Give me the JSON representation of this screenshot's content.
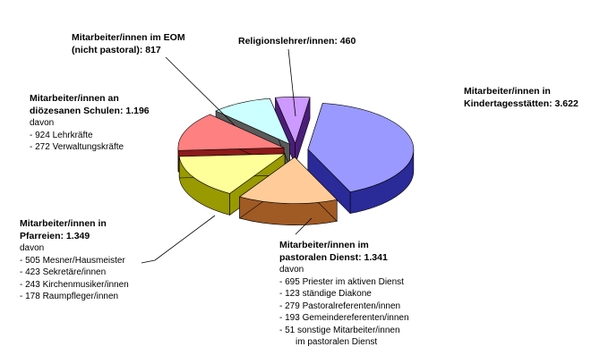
{
  "chart_data": {
    "type": "pie",
    "style": "3d-exploded",
    "total_note": "",
    "slices": [
      {
        "key": "kita",
        "name_lines": [
          "Mitarbeiter/innen in",
          "Kindertagesstätten: 3.622"
        ],
        "value": 3622,
        "top_color": "#9999ff",
        "side_color": "#2a2a99",
        "details": []
      },
      {
        "key": "pastoral",
        "name_lines": [
          "Mitarbeiter/innen im",
          "pastoralen Dienst: 1.341"
        ],
        "value": 1341,
        "top_color": "#ffcc99",
        "side_color": "#a05a24",
        "details": [
          "davon",
          "- 695 Priester im aktiven Dienst",
          "- 123 ständige Diakone",
          "- 279 Pastoralreferenten/innen",
          "- 193 Gemeindereferenten/innen",
          " - 51 sonstige Mitarbeiter/innen",
          "im pastoralen Dienst"
        ]
      },
      {
        "key": "pfarreien",
        "name_lines": [
          "Mitarbeiter/innen in",
          "Pfarreien: 1.349"
        ],
        "value": 1349,
        "top_color": "#ffff99",
        "side_color": "#999900",
        "details": [
          "davon",
          "- 505 Mesner/Hausmeister",
          "- 423 Sekretäre/innen",
          "- 243 Kirchenmusiker/innen",
          "- 178 Raumpfleger/innen"
        ]
      },
      {
        "key": "schulen",
        "name_lines": [
          "Mitarbeiter/innen an",
          "diözesanen Schulen: 1.196"
        ],
        "value": 1196,
        "top_color": "#ff8080",
        "side_color": "#8c1a1a",
        "details": [
          "davon",
          "- 924 Lehrkräfte",
          "- 272 Verwaltungskräfte"
        ]
      },
      {
        "key": "eom",
        "name_lines": [
          "Mitarbeiter/innen im EOM",
          "(nicht pastoral): 817"
        ],
        "value": 817,
        "top_color": "#ccffff",
        "side_color": "#5a5a5a",
        "details": []
      },
      {
        "key": "religion",
        "name_lines": [
          "Religionslehrer/innen: 460"
        ],
        "value": 460,
        "top_color": "#cc99ff",
        "side_color": "#4b1e7a",
        "details": []
      }
    ]
  }
}
